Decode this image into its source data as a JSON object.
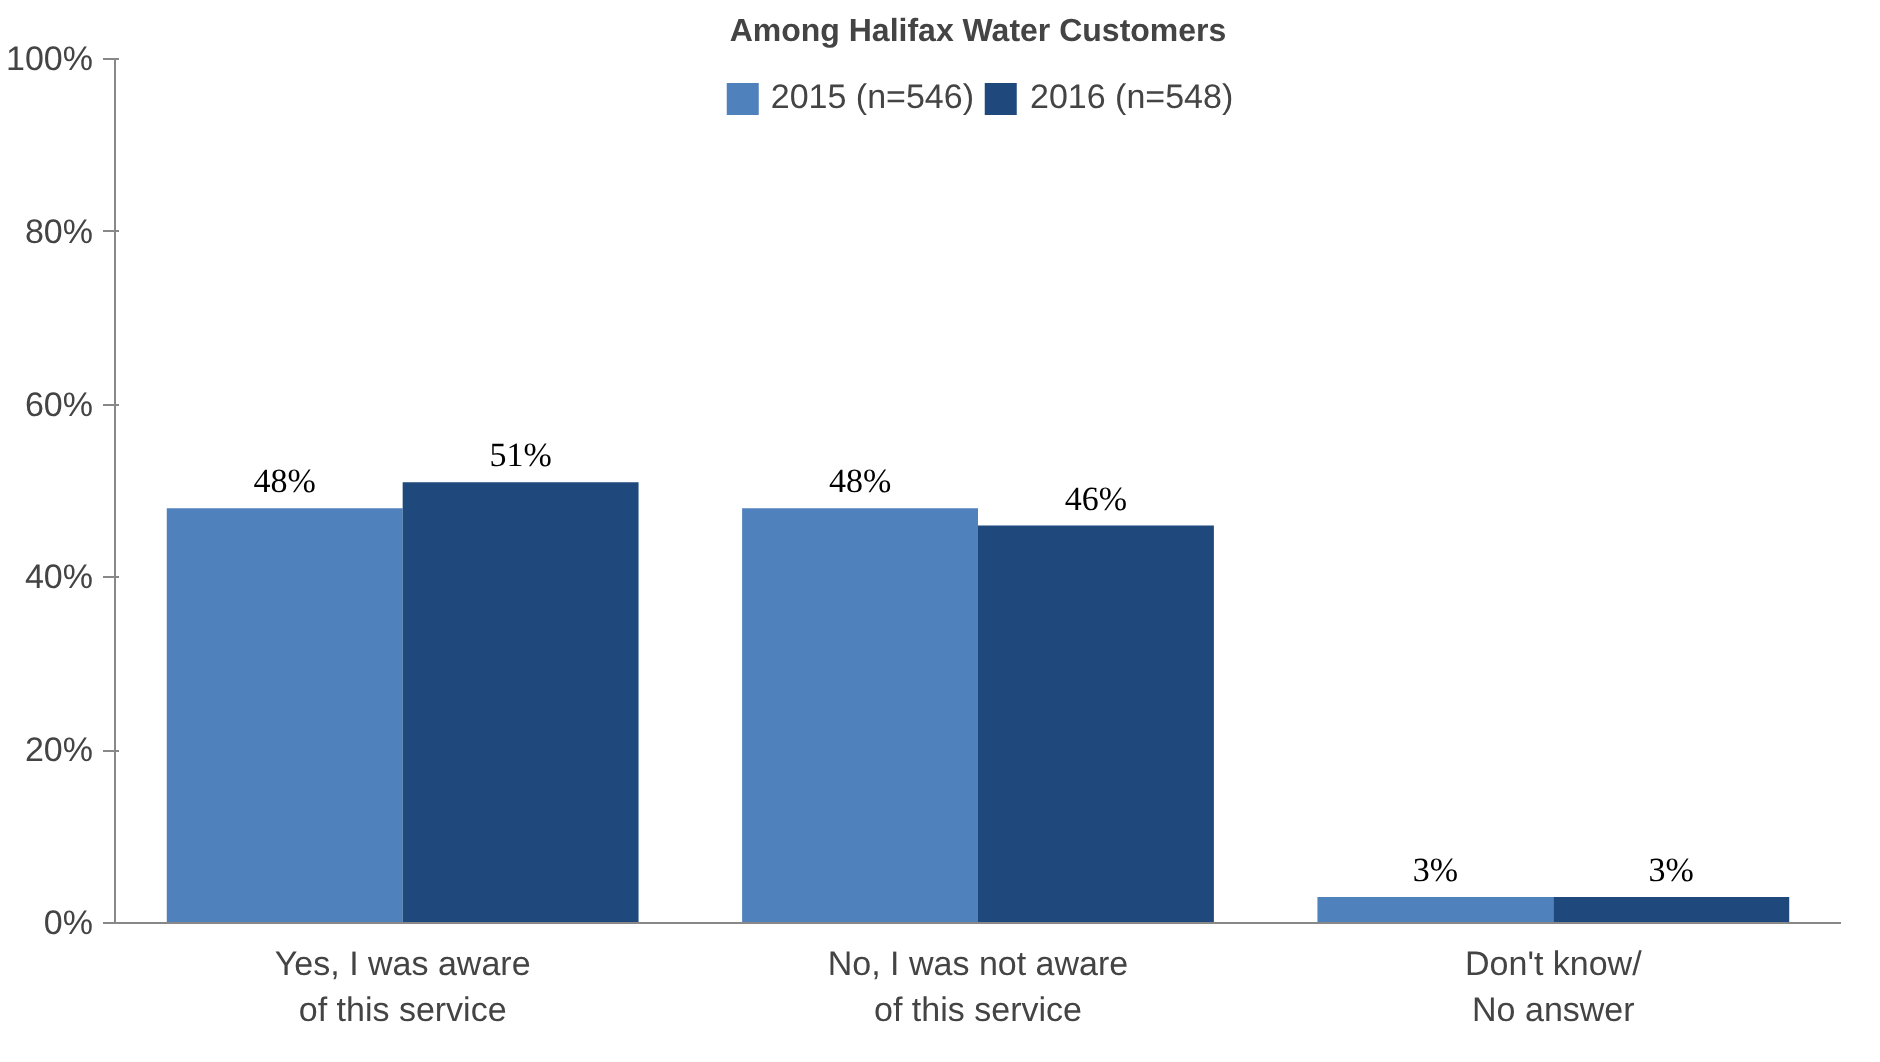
{
  "chart_data": {
    "type": "bar",
    "title": "Among Halifax Water Customers",
    "categories": [
      "Yes, I was aware\nof this service",
      "No, I was not aware\nof this service",
      "Don't know/\nNo answer"
    ],
    "series": [
      {
        "name": "2015 (n=546)",
        "color": "#4f81bd",
        "values": [
          48,
          48,
          3
        ],
        "value_labels": [
          "48%",
          "48%",
          "3%"
        ]
      },
      {
        "name": "2016 (n=548)",
        "color": "#1f497d",
        "values": [
          51,
          46,
          3
        ],
        "value_labels": [
          "51%",
          "46%",
          "3%"
        ]
      }
    ],
    "ylim": [
      0,
      100
    ],
    "yticks": [
      {
        "value": 0,
        "label": "0%"
      },
      {
        "value": 20,
        "label": "20%"
      },
      {
        "value": 40,
        "label": "40%"
      },
      {
        "value": 60,
        "label": "60%"
      },
      {
        "value": 80,
        "label": "80%"
      },
      {
        "value": 100,
        "label": "100%"
      }
    ],
    "grid": false,
    "legend": "top"
  }
}
